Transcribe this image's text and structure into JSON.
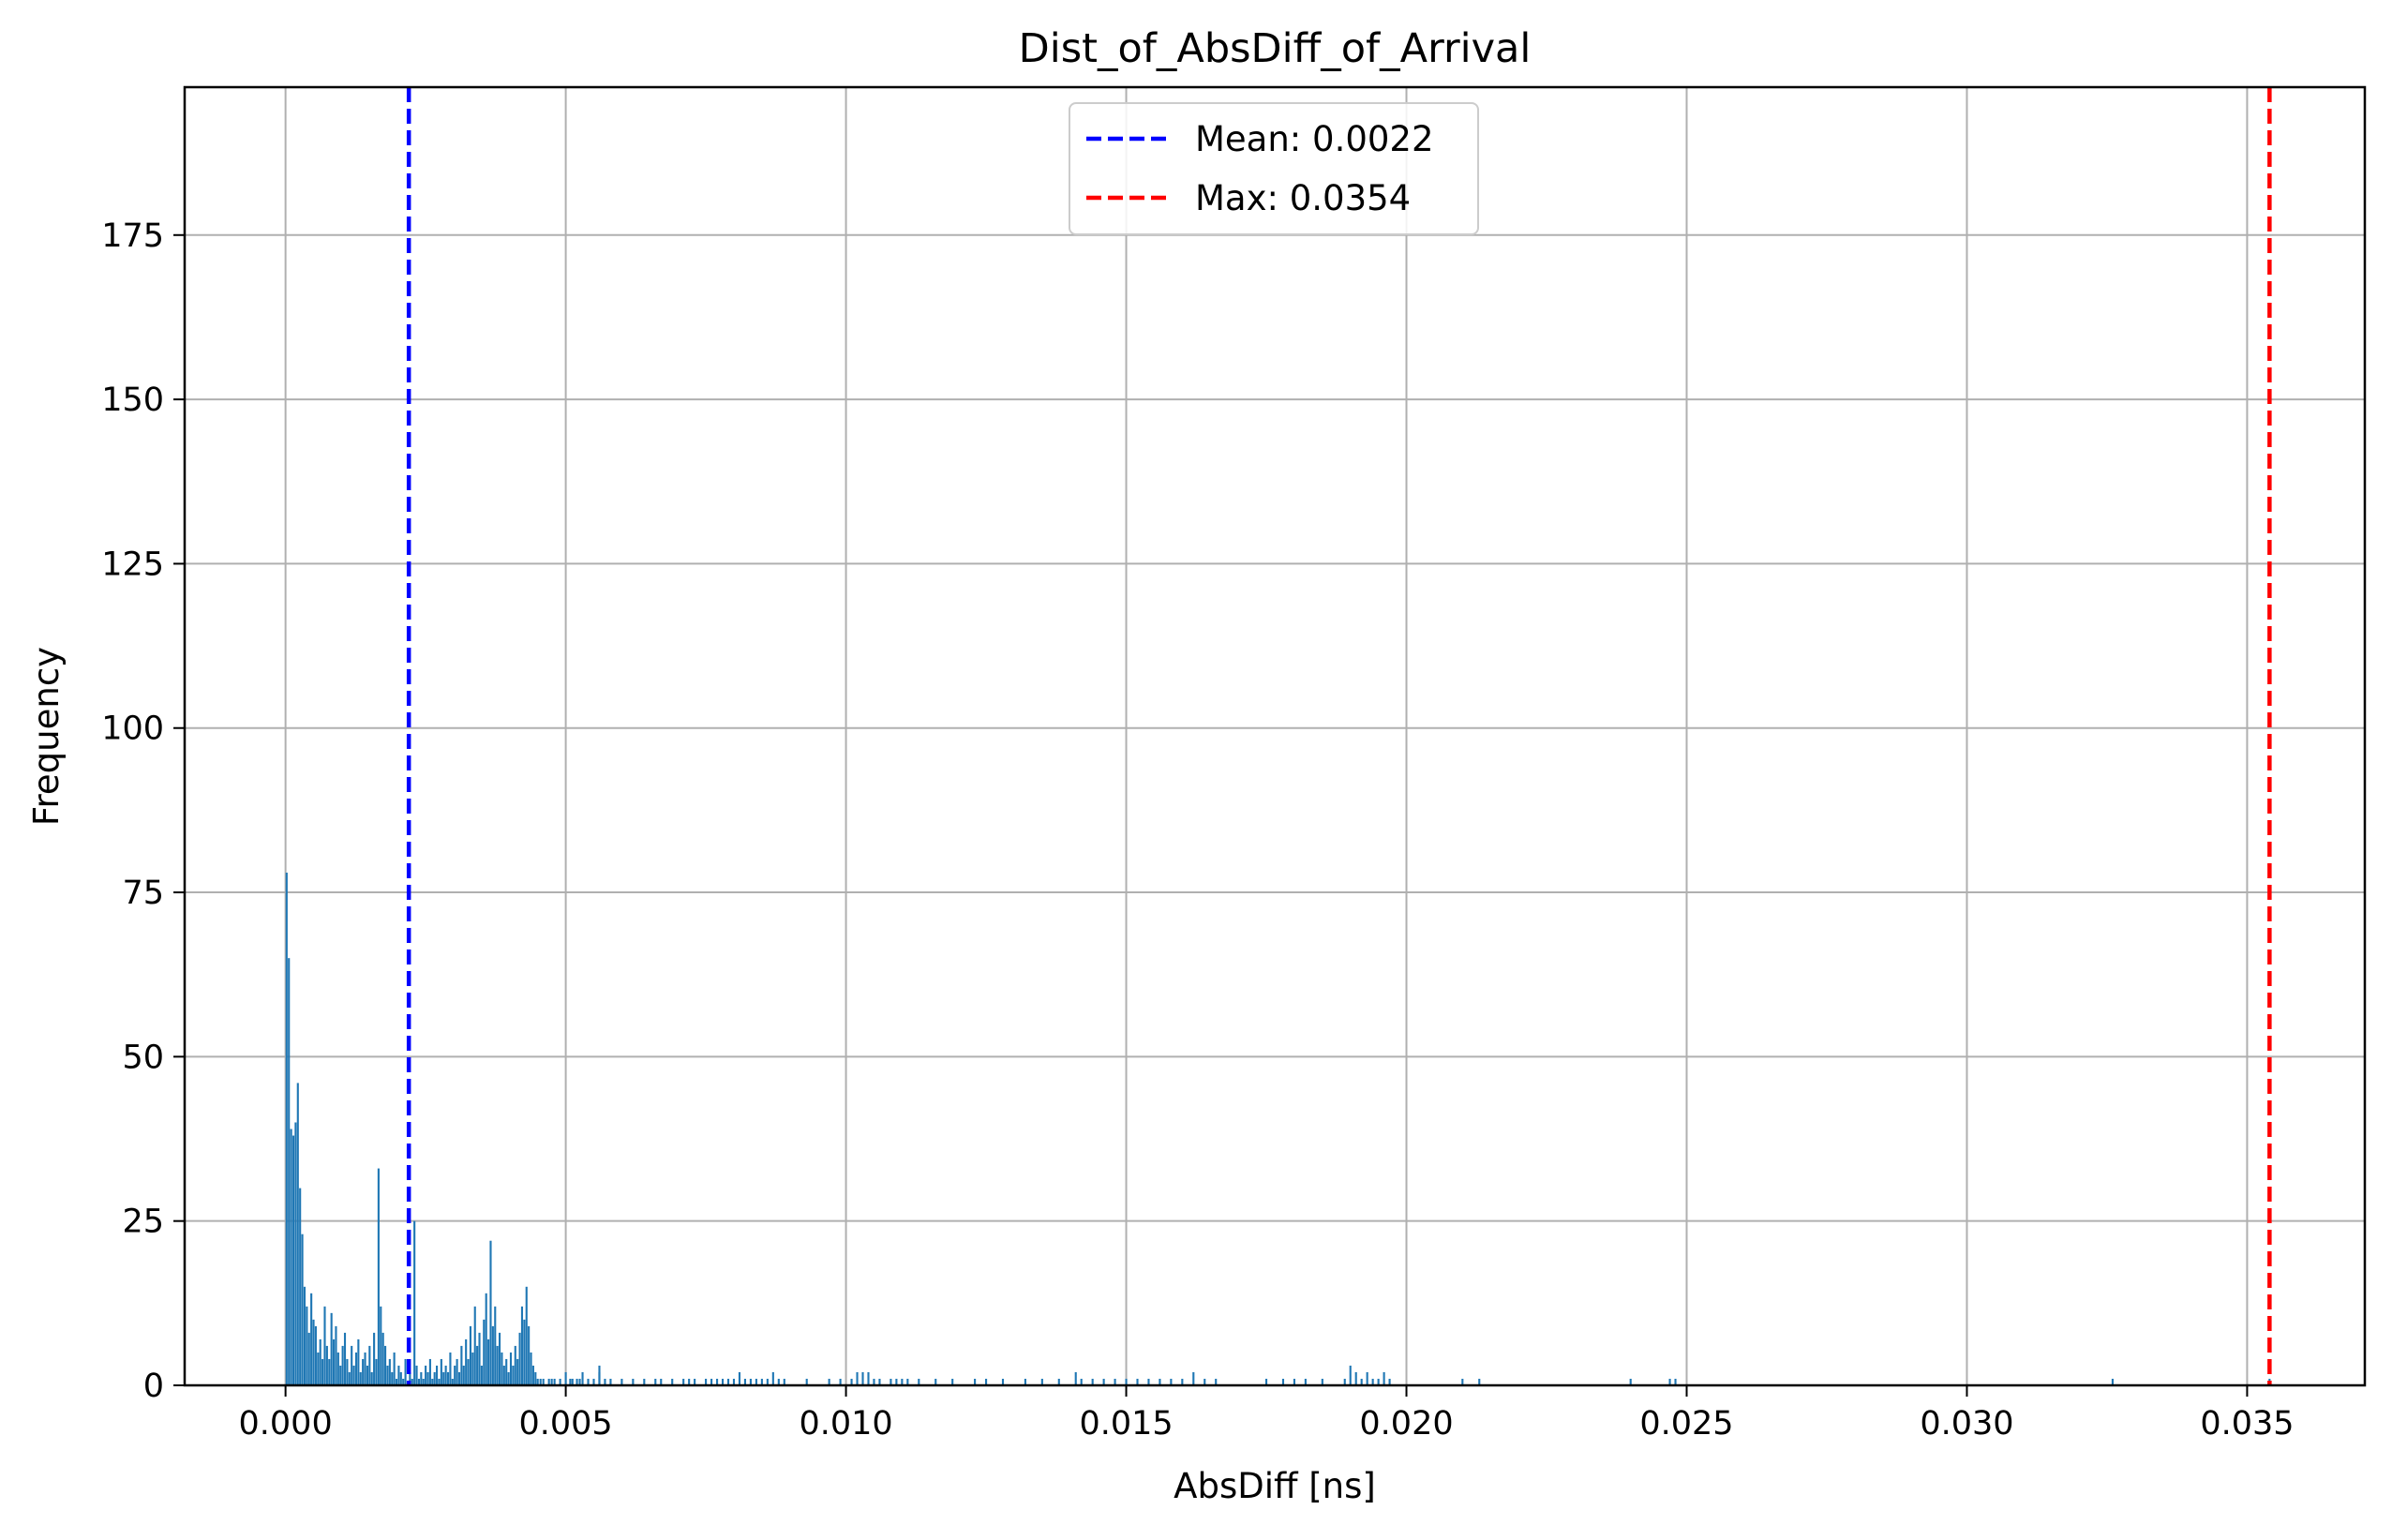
{
  "chart_data": {
    "type": "bar",
    "title": "Dist_of_AbsDiff_of_Arrival",
    "xlabel": "AbsDiff [ns]",
    "ylabel": "Frequency",
    "xlim": [
      -0.0018,
      0.0371
    ],
    "ylim": [
      0,
      197.5
    ],
    "grid": true,
    "legend_position": "top-center",
    "x_ticks": [
      {
        "value": 0.0,
        "label": "0.000"
      },
      {
        "value": 0.005,
        "label": "0.005"
      },
      {
        "value": 0.01,
        "label": "0.010"
      },
      {
        "value": 0.015,
        "label": "0.015"
      },
      {
        "value": 0.02,
        "label": "0.020"
      },
      {
        "value": 0.025,
        "label": "0.025"
      },
      {
        "value": 0.03,
        "label": "0.030"
      },
      {
        "value": 0.035,
        "label": "0.035"
      }
    ],
    "y_ticks": [
      {
        "value": 0,
        "label": "0"
      },
      {
        "value": 25,
        "label": "25"
      },
      {
        "value": 50,
        "label": "50"
      },
      {
        "value": 75,
        "label": "75"
      },
      {
        "value": 100,
        "label": "100"
      },
      {
        "value": 125,
        "label": "125"
      },
      {
        "value": 150,
        "label": "150"
      },
      {
        "value": 175,
        "label": "175"
      }
    ],
    "bar_color": "#1f77b4",
    "bin_width": 3.54e-05,
    "bars": [
      [
        2e-05,
        78
      ],
      [
        6e-05,
        65
      ],
      [
        0.0001,
        39
      ],
      [
        0.00014,
        38
      ],
      [
        0.00018,
        40
      ],
      [
        0.00022,
        46
      ],
      [
        0.00026,
        30
      ],
      [
        0.0003,
        23
      ],
      [
        0.00034,
        15
      ],
      [
        0.00038,
        12
      ],
      [
        0.00042,
        8
      ],
      [
        0.00046,
        14
      ],
      [
        0.0005,
        10
      ],
      [
        0.00054,
        9
      ],
      [
        0.00058,
        5
      ],
      [
        0.00062,
        7
      ],
      [
        0.00066,
        4
      ],
      [
        0.0007,
        12
      ],
      [
        0.00074,
        6
      ],
      [
        0.00078,
        4
      ],
      [
        0.00082,
        11
      ],
      [
        0.00086,
        7
      ],
      [
        0.0009,
        9
      ],
      [
        0.00094,
        5
      ],
      [
        0.00098,
        3
      ],
      [
        0.00102,
        6
      ],
      [
        0.00106,
        8
      ],
      [
        0.0011,
        4
      ],
      [
        0.00114,
        2
      ],
      [
        0.00118,
        6
      ],
      [
        0.00122,
        3
      ],
      [
        0.00126,
        5
      ],
      [
        0.0013,
        7
      ],
      [
        0.00134,
        2
      ],
      [
        0.00138,
        4
      ],
      [
        0.00142,
        5
      ],
      [
        0.00146,
        3
      ],
      [
        0.0015,
        6
      ],
      [
        0.00154,
        2
      ],
      [
        0.00158,
        8
      ],
      [
        0.00162,
        4
      ],
      [
        0.00166,
        33
      ],
      [
        0.0017,
        12
      ],
      [
        0.00174,
        8
      ],
      [
        0.00178,
        6
      ],
      [
        0.00182,
        3
      ],
      [
        0.00186,
        4
      ],
      [
        0.0019,
        2
      ],
      [
        0.00194,
        5
      ],
      [
        0.00198,
        1
      ],
      [
        0.00202,
        3
      ],
      [
        0.00206,
        2
      ],
      [
        0.0021,
        1
      ],
      [
        0.00214,
        4
      ],
      [
        0.00222,
        2
      ],
      [
        0.00226,
        1
      ],
      [
        0.0023,
        25
      ],
      [
        0.00234,
        3
      ],
      [
        0.00238,
        1
      ],
      [
        0.00242,
        2
      ],
      [
        0.00246,
        1
      ],
      [
        0.0025,
        3
      ],
      [
        0.00254,
        2
      ],
      [
        0.00258,
        4
      ],
      [
        0.00262,
        1
      ],
      [
        0.00266,
        2
      ],
      [
        0.0027,
        3
      ],
      [
        0.00274,
        1
      ],
      [
        0.00278,
        4
      ],
      [
        0.00282,
        2
      ],
      [
        0.00286,
        3
      ],
      [
        0.0029,
        2
      ],
      [
        0.00294,
        5
      ],
      [
        0.00298,
        1
      ],
      [
        0.00302,
        3
      ],
      [
        0.00306,
        4
      ],
      [
        0.0031,
        2
      ],
      [
        0.00314,
        6
      ],
      [
        0.00318,
        3
      ],
      [
        0.00322,
        7
      ],
      [
        0.00326,
        4
      ],
      [
        0.0033,
        9
      ],
      [
        0.00334,
        5
      ],
      [
        0.00338,
        12
      ],
      [
        0.00342,
        6
      ],
      [
        0.00346,
        8
      ],
      [
        0.0035,
        3
      ],
      [
        0.00354,
        10
      ],
      [
        0.00358,
        14
      ],
      [
        0.00362,
        7
      ],
      [
        0.00366,
        22
      ],
      [
        0.0037,
        9
      ],
      [
        0.00374,
        12
      ],
      [
        0.00378,
        6
      ],
      [
        0.00382,
        8
      ],
      [
        0.00386,
        5
      ],
      [
        0.0039,
        3
      ],
      [
        0.00394,
        4
      ],
      [
        0.00398,
        2
      ],
      [
        0.00402,
        5
      ],
      [
        0.00406,
        3
      ],
      [
        0.0041,
        6
      ],
      [
        0.00414,
        4
      ],
      [
        0.00418,
        8
      ],
      [
        0.00422,
        12
      ],
      [
        0.00426,
        10
      ],
      [
        0.0043,
        15
      ],
      [
        0.00434,
        9
      ],
      [
        0.00438,
        5
      ],
      [
        0.00442,
        3
      ],
      [
        0.00446,
        2
      ],
      [
        0.0045,
        1
      ],
      [
        0.00455,
        1
      ],
      [
        0.0046,
        1
      ],
      [
        0.0047,
        1
      ],
      [
        0.00475,
        1
      ],
      [
        0.0048,
        1
      ],
      [
        0.0049,
        1
      ],
      [
        0.005,
        2
      ],
      [
        0.00508,
        1
      ],
      [
        0.00512,
        1
      ],
      [
        0.0052,
        1
      ],
      [
        0.00525,
        1
      ],
      [
        0.0053,
        2
      ],
      [
        0.0054,
        1
      ],
      [
        0.0055,
        1
      ],
      [
        0.0056,
        2
      ],
      [
        0.0057,
        1
      ],
      [
        0.0058,
        1
      ],
      [
        0.0056,
        3
      ],
      [
        0.006,
        1
      ],
      [
        0.0062,
        1
      ],
      [
        0.0064,
        1
      ],
      [
        0.0066,
        1
      ],
      [
        0.0067,
        1
      ],
      [
        0.0069,
        1
      ],
      [
        0.0071,
        1
      ],
      [
        0.0072,
        1
      ],
      [
        0.0073,
        1
      ],
      [
        0.0075,
        1
      ],
      [
        0.0076,
        1
      ],
      [
        0.0077,
        1
      ],
      [
        0.0078,
        1
      ],
      [
        0.0079,
        1
      ],
      [
        0.008,
        1
      ],
      [
        0.0081,
        2
      ],
      [
        0.0082,
        1
      ],
      [
        0.0083,
        1
      ],
      [
        0.0084,
        1
      ],
      [
        0.0085,
        1
      ],
      [
        0.0086,
        1
      ],
      [
        0.0087,
        2
      ],
      [
        0.0088,
        1
      ],
      [
        0.0089,
        1
      ],
      [
        0.0093,
        1
      ],
      [
        0.0097,
        1
      ],
      [
        0.0099,
        1
      ],
      [
        0.0101,
        1
      ],
      [
        0.0102,
        2
      ],
      [
        0.0103,
        2
      ],
      [
        0.0104,
        2
      ],
      [
        0.0105,
        1
      ],
      [
        0.0106,
        1
      ],
      [
        0.0108,
        1
      ],
      [
        0.0109,
        1
      ],
      [
        0.011,
        1
      ],
      [
        0.0111,
        1
      ],
      [
        0.0113,
        1
      ],
      [
        0.0116,
        1
      ],
      [
        0.0119,
        1
      ],
      [
        0.0123,
        1
      ],
      [
        0.0125,
        1
      ],
      [
        0.0128,
        1
      ],
      [
        0.0132,
        1
      ],
      [
        0.0135,
        1
      ],
      [
        0.0138,
        1
      ],
      [
        0.0141,
        2
      ],
      [
        0.0142,
        1
      ],
      [
        0.0144,
        1
      ],
      [
        0.0146,
        1
      ],
      [
        0.0148,
        1
      ],
      [
        0.015,
        1
      ],
      [
        0.0152,
        1
      ],
      [
        0.0154,
        1
      ],
      [
        0.0156,
        1
      ],
      [
        0.0158,
        1
      ],
      [
        0.016,
        1
      ],
      [
        0.0162,
        2
      ],
      [
        0.0164,
        1
      ],
      [
        0.0166,
        1
      ],
      [
        0.0175,
        1
      ],
      [
        0.0178,
        1
      ],
      [
        0.018,
        1
      ],
      [
        0.0182,
        1
      ],
      [
        0.0185,
        1
      ],
      [
        0.0189,
        1
      ],
      [
        0.019,
        3
      ],
      [
        0.0191,
        2
      ],
      [
        0.0192,
        1
      ],
      [
        0.0193,
        2
      ],
      [
        0.0194,
        1
      ],
      [
        0.0195,
        1
      ],
      [
        0.0196,
        2
      ],
      [
        0.0197,
        1
      ],
      [
        0.021,
        1
      ],
      [
        0.0213,
        1
      ],
      [
        0.024,
        1
      ],
      [
        0.0247,
        1
      ],
      [
        0.0248,
        1
      ],
      [
        0.0326,
        1
      ],
      [
        0.0354,
        1
      ]
    ],
    "reference_lines": [
      {
        "name": "Mean: 0.0022",
        "x": 0.0022,
        "color": "#0000ff",
        "style": "dashed"
      },
      {
        "name": "Max: 0.0354",
        "x": 0.0354,
        "color": "#ff0000",
        "style": "dashed"
      }
    ]
  }
}
